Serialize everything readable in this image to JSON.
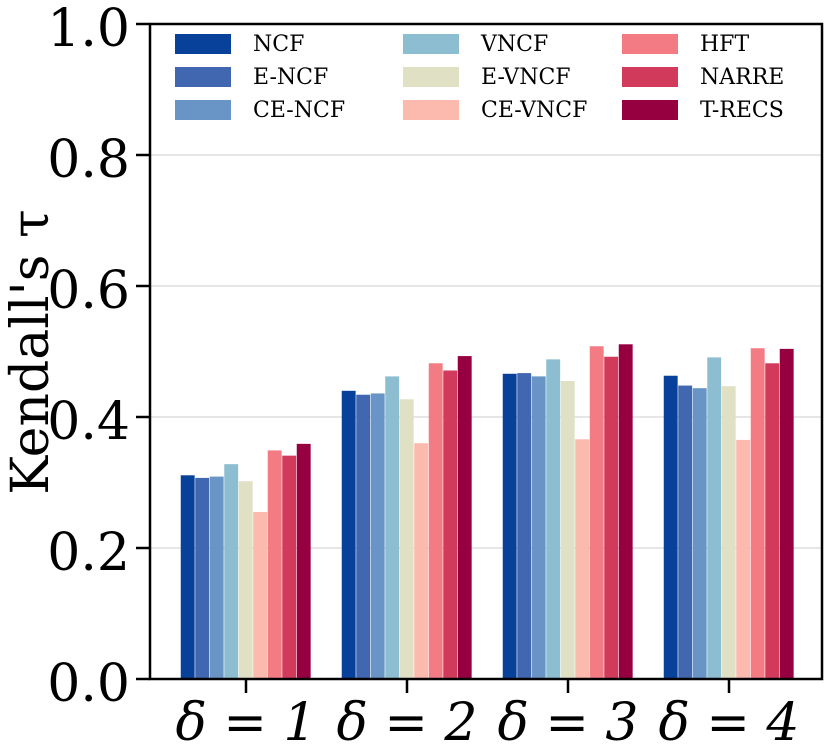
{
  "chart_data": {
    "type": "bar",
    "title": "",
    "xlabel": "",
    "ylabel": "Kendall's τ",
    "ylim": [
      0.0,
      1.0
    ],
    "yticks": [
      "0.0",
      "0.2",
      "0.4",
      "0.6",
      "0.8",
      "1.0"
    ],
    "grid": "horizontal",
    "legend_position": "top",
    "categories": [
      "δ = 1",
      "δ = 2",
      "δ = 3",
      "δ = 4"
    ],
    "series": [
      {
        "name": "NCF",
        "color": "#08419a",
        "values": [
          0.311,
          0.44,
          0.466,
          0.463
        ]
      },
      {
        "name": "E-NCF",
        "color": "#4067b0",
        "values": [
          0.307,
          0.434,
          0.467,
          0.448
        ]
      },
      {
        "name": "CE-NCF",
        "color": "#6895c5",
        "values": [
          0.309,
          0.436,
          0.462,
          0.444
        ]
      },
      {
        "name": "VNCF",
        "color": "#8dbdd0",
        "values": [
          0.328,
          0.462,
          0.488,
          0.491
        ]
      },
      {
        "name": "E-VNCF",
        "color": "#dfe0c4",
        "values": [
          0.302,
          0.427,
          0.455,
          0.447
        ]
      },
      {
        "name": "CE-VNCF",
        "color": "#fcb9ad",
        "values": [
          0.255,
          0.36,
          0.366,
          0.365
        ]
      },
      {
        "name": "HFT",
        "color": "#f37b83",
        "values": [
          0.349,
          0.482,
          0.508,
          0.505
        ]
      },
      {
        "name": "NARRE",
        "color": "#d13a5b",
        "values": [
          0.341,
          0.471,
          0.492,
          0.482
        ]
      },
      {
        "name": "T-RECS",
        "color": "#970040",
        "values": [
          0.359,
          0.493,
          0.511,
          0.504
        ]
      }
    ]
  }
}
